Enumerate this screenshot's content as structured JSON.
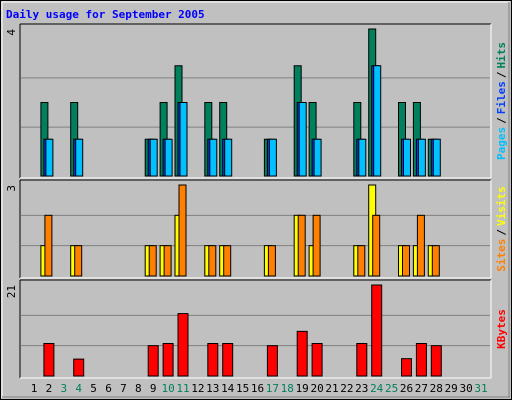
{
  "chart_data": [
    {
      "type": "bar",
      "title": "Daily usage for September 2005",
      "ylim": [
        0,
        4
      ],
      "yticks": [
        4
      ],
      "gridlines": [
        1.33,
        2.67
      ],
      "legend_separator": "/",
      "series": [
        {
          "name": "Hits",
          "color": "#00805c",
          "values": [
            0,
            2,
            0,
            2,
            0,
            0,
            0,
            0,
            1,
            2,
            3,
            0,
            2,
            2,
            0,
            0,
            1,
            0,
            3,
            2,
            0,
            0,
            2,
            4,
            0,
            2,
            2,
            1,
            0,
            0,
            0
          ]
        },
        {
          "name": "Files",
          "color": "#0040ff",
          "values": [
            0,
            1,
            0,
            1,
            0,
            0,
            0,
            0,
            1,
            1,
            2,
            0,
            1,
            1,
            0,
            0,
            1,
            0,
            2,
            1,
            0,
            0,
            1,
            3,
            0,
            1,
            1,
            1,
            0,
            0,
            0
          ]
        },
        {
          "name": "Pages",
          "color": "#00c0ff",
          "values": [
            0,
            1,
            0,
            1,
            0,
            0,
            0,
            0,
            1,
            1,
            2,
            0,
            1,
            1,
            0,
            0,
            1,
            0,
            2,
            1,
            0,
            0,
            1,
            3,
            0,
            1,
            1,
            1,
            0,
            0,
            0
          ]
        }
      ]
    },
    {
      "type": "bar",
      "ylim": [
        0,
        3
      ],
      "yticks": [
        3
      ],
      "gridlines": [
        1,
        2
      ],
      "legend_separator": "/",
      "series": [
        {
          "name": "Visits",
          "color": "#ffff00",
          "values": [
            0,
            1,
            0,
            1,
            0,
            0,
            0,
            0,
            1,
            1,
            2,
            0,
            1,
            1,
            0,
            0,
            1,
            0,
            2,
            1,
            0,
            0,
            1,
            3,
            0,
            1,
            1,
            1,
            0,
            0,
            0
          ]
        },
        {
          "name": "Sites",
          "color": "#ff8000",
          "values": [
            0,
            2,
            0,
            1,
            0,
            0,
            0,
            0,
            1,
            1,
            3,
            0,
            1,
            1,
            0,
            0,
            1,
            0,
            2,
            2,
            0,
            0,
            1,
            2,
            0,
            1,
            2,
            1,
            0,
            0,
            0
          ]
        }
      ]
    },
    {
      "type": "bar",
      "ylim": [
        0,
        21
      ],
      "yticks": [
        21
      ],
      "gridlines": [
        7,
        14
      ],
      "categories": [
        "1",
        "2",
        "3",
        "4",
        "5",
        "6",
        "7",
        "8",
        "9",
        "10",
        "11",
        "12",
        "13",
        "14",
        "15",
        "16",
        "17",
        "18",
        "19",
        "20",
        "21",
        "22",
        "23",
        "24",
        "25",
        "26",
        "27",
        "28",
        "29",
        "30",
        "31"
      ],
      "category_colors": [
        "#000000",
        "#000000",
        "#00805c",
        "#00805c",
        "#000000",
        "#000000",
        "#000000",
        "#000000",
        "#000000",
        "#00805c",
        "#00805c",
        "#000000",
        "#000000",
        "#000000",
        "#000000",
        "#000000",
        "#00805c",
        "#00805c",
        "#000000",
        "#000000",
        "#000000",
        "#000000",
        "#000000",
        "#00805c",
        "#00805c",
        "#000000",
        "#000000",
        "#000000",
        "#000000",
        "#000000",
        "#00805c"
      ],
      "series": [
        {
          "name": "KBytes",
          "color": "#ff0000",
          "values": [
            0,
            7.5,
            0,
            3.9,
            0,
            0,
            0,
            0,
            7,
            7.5,
            14.4,
            0,
            7.5,
            7.5,
            0,
            0,
            7,
            0,
            10.3,
            7.5,
            0,
            0,
            7.5,
            21,
            0,
            4,
            7.5,
            7,
            0,
            0,
            0
          ]
        }
      ]
    }
  ]
}
